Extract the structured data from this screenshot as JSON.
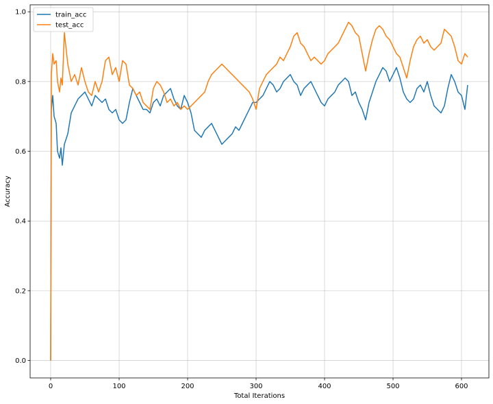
{
  "chart_data": {
    "type": "line",
    "title": "",
    "xlabel": "Total Iterations",
    "ylabel": "Accuracy",
    "xlim": [
      -30,
      640
    ],
    "ylim": [
      -0.05,
      1.02
    ],
    "xticks": [
      0,
      100,
      200,
      300,
      400,
      500,
      600
    ],
    "yticks": [
      0.0,
      0.2,
      0.4,
      0.6,
      0.8,
      1.0
    ],
    "xtick_labels": [
      "0",
      "100",
      "200",
      "300",
      "400",
      "500",
      "600"
    ],
    "ytick_labels": [
      "0.0",
      "0.2",
      "0.4",
      "0.6",
      "0.8",
      "1.0"
    ],
    "grid": true,
    "legend_position": "top-left",
    "series": [
      {
        "name": "train_acc",
        "color": "#1f77b4",
        "points": [
          [
            0,
            0.0
          ],
          [
            1,
            0.72
          ],
          [
            3,
            0.76
          ],
          [
            5,
            0.7
          ],
          [
            8,
            0.68
          ],
          [
            10,
            0.6
          ],
          [
            13,
            0.58
          ],
          [
            15,
            0.61
          ],
          [
            17,
            0.56
          ],
          [
            20,
            0.62
          ],
          [
            25,
            0.65
          ],
          [
            30,
            0.71
          ],
          [
            35,
            0.73
          ],
          [
            40,
            0.75
          ],
          [
            45,
            0.76
          ],
          [
            50,
            0.77
          ],
          [
            55,
            0.75
          ],
          [
            60,
            0.73
          ],
          [
            65,
            0.76
          ],
          [
            70,
            0.75
          ],
          [
            75,
            0.74
          ],
          [
            80,
            0.75
          ],
          [
            85,
            0.72
          ],
          [
            90,
            0.71
          ],
          [
            95,
            0.72
          ],
          [
            100,
            0.69
          ],
          [
            105,
            0.68
          ],
          [
            110,
            0.69
          ],
          [
            115,
            0.74
          ],
          [
            120,
            0.78
          ],
          [
            125,
            0.76
          ],
          [
            130,
            0.74
          ],
          [
            135,
            0.72
          ],
          [
            140,
            0.72
          ],
          [
            145,
            0.71
          ],
          [
            150,
            0.74
          ],
          [
            155,
            0.75
          ],
          [
            160,
            0.73
          ],
          [
            165,
            0.76
          ],
          [
            170,
            0.77
          ],
          [
            175,
            0.78
          ],
          [
            180,
            0.75
          ],
          [
            185,
            0.73
          ],
          [
            190,
            0.72
          ],
          [
            195,
            0.76
          ],
          [
            200,
            0.74
          ],
          [
            205,
            0.71
          ],
          [
            210,
            0.66
          ],
          [
            215,
            0.65
          ],
          [
            220,
            0.64
          ],
          [
            225,
            0.66
          ],
          [
            230,
            0.67
          ],
          [
            235,
            0.68
          ],
          [
            240,
            0.66
          ],
          [
            245,
            0.64
          ],
          [
            250,
            0.62
          ],
          [
            255,
            0.63
          ],
          [
            260,
            0.64
          ],
          [
            265,
            0.65
          ],
          [
            270,
            0.67
          ],
          [
            275,
            0.66
          ],
          [
            280,
            0.68
          ],
          [
            285,
            0.7
          ],
          [
            290,
            0.72
          ],
          [
            295,
            0.74
          ],
          [
            300,
            0.74
          ],
          [
            305,
            0.75
          ],
          [
            310,
            0.76
          ],
          [
            315,
            0.78
          ],
          [
            320,
            0.8
          ],
          [
            325,
            0.79
          ],
          [
            330,
            0.77
          ],
          [
            335,
            0.78
          ],
          [
            340,
            0.8
          ],
          [
            345,
            0.81
          ],
          [
            350,
            0.82
          ],
          [
            355,
            0.8
          ],
          [
            360,
            0.79
          ],
          [
            365,
            0.76
          ],
          [
            370,
            0.78
          ],
          [
            375,
            0.79
          ],
          [
            380,
            0.8
          ],
          [
            385,
            0.78
          ],
          [
            390,
            0.76
          ],
          [
            395,
            0.74
          ],
          [
            400,
            0.73
          ],
          [
            405,
            0.75
          ],
          [
            410,
            0.76
          ],
          [
            415,
            0.77
          ],
          [
            420,
            0.79
          ],
          [
            425,
            0.8
          ],
          [
            430,
            0.81
          ],
          [
            435,
            0.8
          ],
          [
            440,
            0.76
          ],
          [
            445,
            0.77
          ],
          [
            450,
            0.74
          ],
          [
            455,
            0.72
          ],
          [
            460,
            0.69
          ],
          [
            465,
            0.74
          ],
          [
            470,
            0.77
          ],
          [
            475,
            0.8
          ],
          [
            480,
            0.82
          ],
          [
            485,
            0.84
          ],
          [
            490,
            0.83
          ],
          [
            495,
            0.8
          ],
          [
            500,
            0.82
          ],
          [
            505,
            0.84
          ],
          [
            510,
            0.81
          ],
          [
            515,
            0.77
          ],
          [
            520,
            0.75
          ],
          [
            525,
            0.74
          ],
          [
            530,
            0.75
          ],
          [
            535,
            0.78
          ],
          [
            540,
            0.79
          ],
          [
            545,
            0.77
          ],
          [
            550,
            0.8
          ],
          [
            555,
            0.76
          ],
          [
            560,
            0.73
          ],
          [
            565,
            0.72
          ],
          [
            570,
            0.71
          ],
          [
            575,
            0.73
          ],
          [
            580,
            0.78
          ],
          [
            585,
            0.82
          ],
          [
            590,
            0.8
          ],
          [
            595,
            0.77
          ],
          [
            600,
            0.76
          ],
          [
            605,
            0.72
          ],
          [
            609,
            0.79
          ]
        ]
      },
      {
        "name": "test_acc",
        "color": "#ff7f0e",
        "points": [
          [
            0,
            0.0
          ],
          [
            1,
            0.82
          ],
          [
            3,
            0.88
          ],
          [
            5,
            0.85
          ],
          [
            8,
            0.86
          ],
          [
            10,
            0.8
          ],
          [
            13,
            0.77
          ],
          [
            15,
            0.81
          ],
          [
            17,
            0.79
          ],
          [
            20,
            0.94
          ],
          [
            25,
            0.85
          ],
          [
            30,
            0.8
          ],
          [
            35,
            0.82
          ],
          [
            40,
            0.79
          ],
          [
            45,
            0.84
          ],
          [
            50,
            0.8
          ],
          [
            55,
            0.77
          ],
          [
            60,
            0.76
          ],
          [
            65,
            0.8
          ],
          [
            70,
            0.77
          ],
          [
            75,
            0.8
          ],
          [
            80,
            0.86
          ],
          [
            85,
            0.87
          ],
          [
            90,
            0.82
          ],
          [
            95,
            0.84
          ],
          [
            100,
            0.8
          ],
          [
            105,
            0.86
          ],
          [
            110,
            0.85
          ],
          [
            115,
            0.79
          ],
          [
            120,
            0.78
          ],
          [
            125,
            0.76
          ],
          [
            130,
            0.77
          ],
          [
            135,
            0.74
          ],
          [
            140,
            0.73
          ],
          [
            145,
            0.72
          ],
          [
            150,
            0.78
          ],
          [
            155,
            0.8
          ],
          [
            160,
            0.79
          ],
          [
            165,
            0.77
          ],
          [
            170,
            0.74
          ],
          [
            175,
            0.75
          ],
          [
            180,
            0.73
          ],
          [
            185,
            0.74
          ],
          [
            190,
            0.72
          ],
          [
            195,
            0.73
          ],
          [
            200,
            0.72
          ],
          [
            205,
            0.73
          ],
          [
            210,
            0.74
          ],
          [
            215,
            0.75
          ],
          [
            220,
            0.76
          ],
          [
            225,
            0.77
          ],
          [
            230,
            0.8
          ],
          [
            235,
            0.82
          ],
          [
            240,
            0.83
          ],
          [
            245,
            0.84
          ],
          [
            250,
            0.85
          ],
          [
            255,
            0.84
          ],
          [
            260,
            0.83
          ],
          [
            265,
            0.82
          ],
          [
            270,
            0.81
          ],
          [
            275,
            0.8
          ],
          [
            280,
            0.79
          ],
          [
            285,
            0.78
          ],
          [
            290,
            0.77
          ],
          [
            295,
            0.75
          ],
          [
            300,
            0.72
          ],
          [
            305,
            0.78
          ],
          [
            310,
            0.8
          ],
          [
            315,
            0.82
          ],
          [
            320,
            0.83
          ],
          [
            325,
            0.84
          ],
          [
            330,
            0.85
          ],
          [
            335,
            0.87
          ],
          [
            340,
            0.86
          ],
          [
            345,
            0.88
          ],
          [
            350,
            0.9
          ],
          [
            355,
            0.93
          ],
          [
            360,
            0.94
          ],
          [
            365,
            0.91
          ],
          [
            370,
            0.9
          ],
          [
            375,
            0.88
          ],
          [
            380,
            0.86
          ],
          [
            385,
            0.87
          ],
          [
            390,
            0.86
          ],
          [
            395,
            0.85
          ],
          [
            400,
            0.86
          ],
          [
            405,
            0.88
          ],
          [
            410,
            0.89
          ],
          [
            415,
            0.9
          ],
          [
            420,
            0.91
          ],
          [
            425,
            0.93
          ],
          [
            430,
            0.95
          ],
          [
            435,
            0.97
          ],
          [
            440,
            0.96
          ],
          [
            445,
            0.94
          ],
          [
            450,
            0.93
          ],
          [
            455,
            0.88
          ],
          [
            460,
            0.83
          ],
          [
            465,
            0.88
          ],
          [
            470,
            0.92
          ],
          [
            475,
            0.95
          ],
          [
            480,
            0.96
          ],
          [
            485,
            0.95
          ],
          [
            490,
            0.93
          ],
          [
            495,
            0.92
          ],
          [
            500,
            0.9
          ],
          [
            505,
            0.88
          ],
          [
            510,
            0.87
          ],
          [
            515,
            0.84
          ],
          [
            520,
            0.81
          ],
          [
            525,
            0.86
          ],
          [
            530,
            0.9
          ],
          [
            535,
            0.92
          ],
          [
            540,
            0.93
          ],
          [
            545,
            0.91
          ],
          [
            550,
            0.92
          ],
          [
            555,
            0.9
          ],
          [
            560,
            0.89
          ],
          [
            565,
            0.9
          ],
          [
            570,
            0.91
          ],
          [
            575,
            0.95
          ],
          [
            580,
            0.94
          ],
          [
            585,
            0.93
          ],
          [
            590,
            0.9
          ],
          [
            595,
            0.86
          ],
          [
            600,
            0.85
          ],
          [
            605,
            0.88
          ],
          [
            609,
            0.87
          ]
        ]
      }
    ]
  }
}
